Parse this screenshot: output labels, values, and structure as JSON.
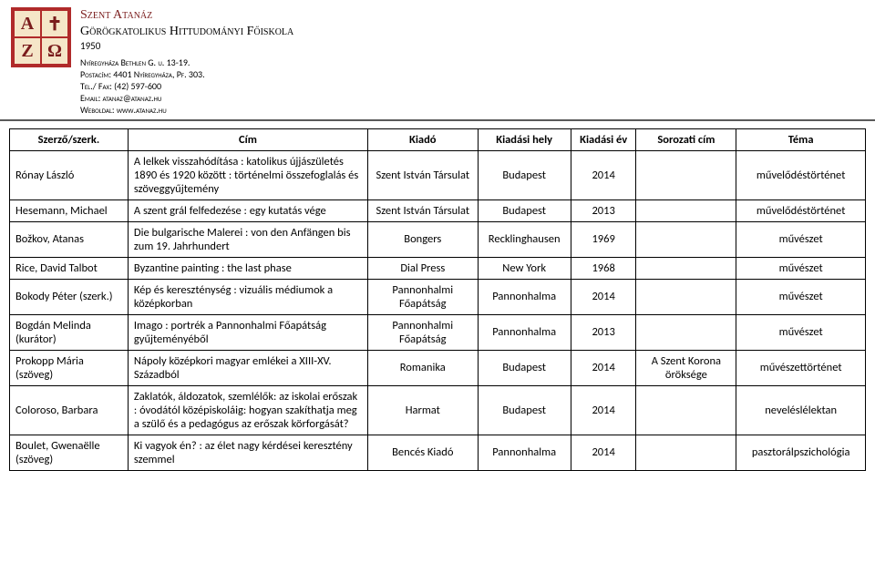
{
  "header": {
    "logo_letters": [
      "A",
      "✝",
      "Z",
      "Ω"
    ],
    "inst_title": "Szent Atanáz",
    "inst_sub": "Görögkatolikus Hittudományi Főiskola",
    "year": "1950",
    "addr1": "Nyíregyháza Bethlen G. u. 13-19.",
    "addr2": "Postacím: 4401 Nyíregyháza, Pf. 303.",
    "addr3": "Tel./ Fax: (42) 597-600",
    "addr4": "Email: atanaz@atanaz.hu",
    "addr5": "Weboldal: www.atanaz.hu"
  },
  "columns": {
    "author": "Szerző/szerk.",
    "title": "Cím",
    "publisher": "Kiadó",
    "place": "Kiadási hely",
    "year": "Kiadási év",
    "series": "Sorozati cím",
    "topic": "Téma"
  },
  "rows": [
    {
      "author": "Rónay László",
      "title": "A lelkek visszahódítása : katolikus újjászületés 1890 és 1920 között : történelmi összefoglalás és szöveggyűjtemény",
      "publisher": "Szent István Társulat",
      "place": "Budapest",
      "year": "2014",
      "series": "",
      "topic": "művelődéstörténet"
    },
    {
      "author": "Hesemann, Michael",
      "title": "A szent grál felfedezése : egy kutatás vége",
      "publisher": "Szent István Társulat",
      "place": "Budapest",
      "year": "2013",
      "series": "",
      "topic": "művelődéstörténet"
    },
    {
      "author": "Božkov, Atanas",
      "title": "Die bulgarische Malerei : von den Anfängen bis zum 19. Jahrhundert",
      "publisher": "Bongers",
      "place": "Recklinghausen",
      "year": "1969",
      "series": "",
      "topic": "művészet"
    },
    {
      "author": "Rice, David Talbot",
      "title": "Byzantine painting : the last phase",
      "publisher": "Dial Press",
      "place": "New York",
      "year": "1968",
      "series": "",
      "topic": "művészet"
    },
    {
      "author": "Bokody Péter (szerk.)",
      "title": "Kép és kereszténység : vizuális médiumok a középkorban",
      "publisher": "Pannonhalmi Főapátság",
      "place": "Pannonhalma",
      "year": "2014",
      "series": "",
      "topic": "művészet"
    },
    {
      "author": "Bogdán Melinda (kurátor)",
      "title": "Imago : portrék a Pannonhalmi Főapátság gyűjteményéből",
      "publisher": "Pannonhalmi Főapátság",
      "place": "Pannonhalma",
      "year": "2013",
      "series": "",
      "topic": "művészet"
    },
    {
      "author": "Prokopp Mária (szöveg)",
      "title": "Nápoly középkori magyar emlékei a XIII-XV. Századból",
      "publisher": "Romanika",
      "place": "Budapest",
      "year": "2014",
      "series": "A Szent Korona öröksége",
      "topic": "művészettörténet"
    },
    {
      "author": "Coloroso, Barbara",
      "title": "Zaklatók, áldozatok, szemlélők: az iskolai erőszak : óvodától középiskoláig: hogyan szakíthatja meg a szülő és a pedagógus az erőszak körforgását?",
      "publisher": "Harmat",
      "place": "Budapest",
      "year": "2014",
      "series": "",
      "topic": "neveléslélektan"
    },
    {
      "author": "Boulet, Gwenaëlle (szöveg)",
      "title": "Ki vagyok én? : az élet nagy kérdései keresztény szemmel",
      "publisher": "Bencés Kiadó",
      "place": "Pannonhalma",
      "year": "2014",
      "series": "",
      "topic": "pasztorálpszichológia"
    }
  ]
}
